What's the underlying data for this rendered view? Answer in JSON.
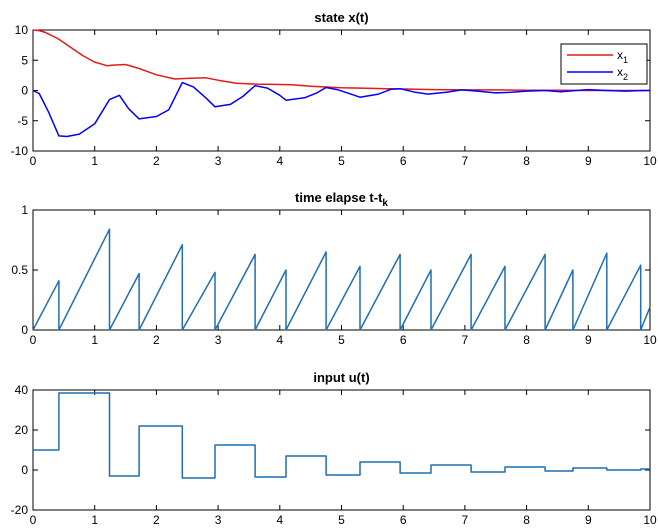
{
  "chart_data": [
    {
      "type": "line",
      "title": "state x(t)",
      "xlim": [
        0,
        10
      ],
      "ylim": [
        -10,
        10
      ],
      "xticks": [
        "0",
        "1",
        "2",
        "3",
        "4",
        "5",
        "6",
        "7",
        "8",
        "9",
        "10"
      ],
      "yticks": [
        "-10",
        "-5",
        "0",
        "5",
        "10"
      ],
      "legend": {
        "position": "top-right"
      },
      "grid": false,
      "series": [
        {
          "name": "x",
          "subscript": "1",
          "color": "#e41a1c",
          "x": [
            0,
            0.1,
            0.2,
            0.4,
            0.6,
            0.8,
            1.0,
            1.2,
            1.3,
            1.5,
            1.7,
            2.0,
            2.3,
            2.5,
            2.8,
            3.0,
            3.3,
            3.6,
            3.9,
            4.2,
            4.5,
            5.0,
            5.5,
            6.0,
            6.5,
            7.0,
            7.5,
            8.0,
            8.5,
            9.0,
            9.5,
            10.0
          ],
          "y": [
            10.0,
            9.9,
            9.6,
            8.6,
            7.2,
            5.8,
            4.7,
            4.1,
            4.2,
            4.3,
            3.7,
            2.6,
            1.9,
            2.0,
            2.1,
            1.7,
            1.2,
            1.05,
            1.0,
            0.95,
            0.7,
            0.45,
            0.35,
            0.25,
            0.15,
            0.1,
            0.1,
            0.05,
            0.05,
            0.0,
            0.0,
            0.0
          ]
        },
        {
          "name": "x",
          "subscript": "2",
          "color": "#0000ff",
          "x": [
            0,
            0.1,
            0.25,
            0.42,
            0.55,
            0.75,
            1.0,
            1.24,
            1.4,
            1.55,
            1.72,
            2.0,
            2.2,
            2.42,
            2.6,
            2.8,
            2.95,
            3.2,
            3.4,
            3.6,
            3.8,
            4.0,
            4.1,
            4.4,
            4.6,
            4.75,
            4.95,
            5.15,
            5.3,
            5.6,
            5.8,
            5.95,
            6.2,
            6.4,
            6.7,
            6.95,
            7.2,
            7.5,
            7.75,
            8.0,
            8.3,
            8.55,
            8.8,
            9.0,
            9.3,
            9.6,
            9.9,
            10.0
          ],
          "y": [
            0,
            -0.5,
            -3.5,
            -7.5,
            -7.6,
            -7.2,
            -5.5,
            -1.5,
            -0.8,
            -3.0,
            -4.7,
            -4.3,
            -3.2,
            1.3,
            0.6,
            -1.2,
            -2.7,
            -2.3,
            -1.0,
            0.8,
            0.4,
            -0.8,
            -1.6,
            -1.2,
            -0.4,
            0.5,
            0.1,
            -0.6,
            -1.1,
            -0.6,
            0.2,
            0.3,
            -0.3,
            -0.6,
            -0.3,
            0.1,
            -0.1,
            -0.4,
            -0.3,
            -0.1,
            0.0,
            -0.2,
            0.0,
            0.15,
            0.0,
            -0.1,
            0.0,
            0.0
          ]
        }
      ]
    },
    {
      "type": "line",
      "title": "time elapse t-t",
      "title_subscript": "k",
      "xlim": [
        0,
        10
      ],
      "ylim": [
        0,
        1
      ],
      "xticks": [
        "0",
        "1",
        "2",
        "3",
        "4",
        "5",
        "6",
        "7",
        "8",
        "9",
        "10"
      ],
      "yticks": [
        "0",
        "0.5",
        "1"
      ],
      "grid": false,
      "series": [
        {
          "color": "#1f6fb4",
          "x": [
            0,
            0.42,
            0.42,
            1.24,
            1.24,
            1.72,
            1.72,
            2.42,
            2.42,
            2.95,
            2.95,
            3.6,
            3.6,
            4.1,
            4.1,
            4.75,
            4.75,
            5.3,
            5.3,
            5.95,
            5.95,
            6.45,
            6.45,
            7.1,
            7.1,
            7.65,
            7.65,
            8.3,
            8.3,
            8.75,
            8.75,
            9.3,
            9.3,
            9.85,
            9.85,
            10.0
          ],
          "y": [
            0,
            0.41,
            0,
            0.84,
            0,
            0.47,
            0,
            0.71,
            0,
            0.48,
            0,
            0.63,
            0,
            0.5,
            0,
            0.65,
            0,
            0.53,
            0,
            0.63,
            0,
            0.5,
            0,
            0.63,
            0,
            0.53,
            0,
            0.63,
            0,
            0.5,
            0,
            0.64,
            0,
            0.54,
            0,
            0.19
          ]
        }
      ]
    },
    {
      "type": "line",
      "title": "input u(t)",
      "xlim": [
        0,
        10
      ],
      "ylim": [
        -20,
        40
      ],
      "xticks": [
        "0",
        "1",
        "2",
        "3",
        "4",
        "5",
        "6",
        "7",
        "8",
        "9",
        "10"
      ],
      "yticks": [
        "-20",
        "0",
        "20",
        "40"
      ],
      "grid": false,
      "series": [
        {
          "color": "#1f6fb4",
          "x": [
            0,
            0.42,
            0.42,
            1.24,
            1.24,
            1.72,
            1.72,
            2.42,
            2.42,
            2.95,
            2.95,
            3.6,
            3.6,
            4.1,
            4.1,
            4.75,
            4.75,
            5.3,
            5.3,
            5.95,
            5.95,
            6.45,
            6.45,
            7.1,
            7.1,
            7.65,
            7.65,
            8.3,
            8.3,
            8.75,
            8.75,
            9.3,
            9.3,
            9.85,
            9.85,
            10.0
          ],
          "y": [
            10,
            10,
            38.5,
            38.5,
            -3,
            -3,
            22,
            22,
            -4,
            -4,
            12.5,
            12.5,
            -3.5,
            -3.5,
            7,
            7,
            -2.5,
            -2.5,
            4,
            4,
            -1.5,
            -1.5,
            2.5,
            2.5,
            -1,
            -1,
            1.5,
            1.5,
            -0.5,
            -0.5,
            1,
            1,
            0,
            0,
            0.5,
            0.5
          ]
        }
      ]
    }
  ]
}
